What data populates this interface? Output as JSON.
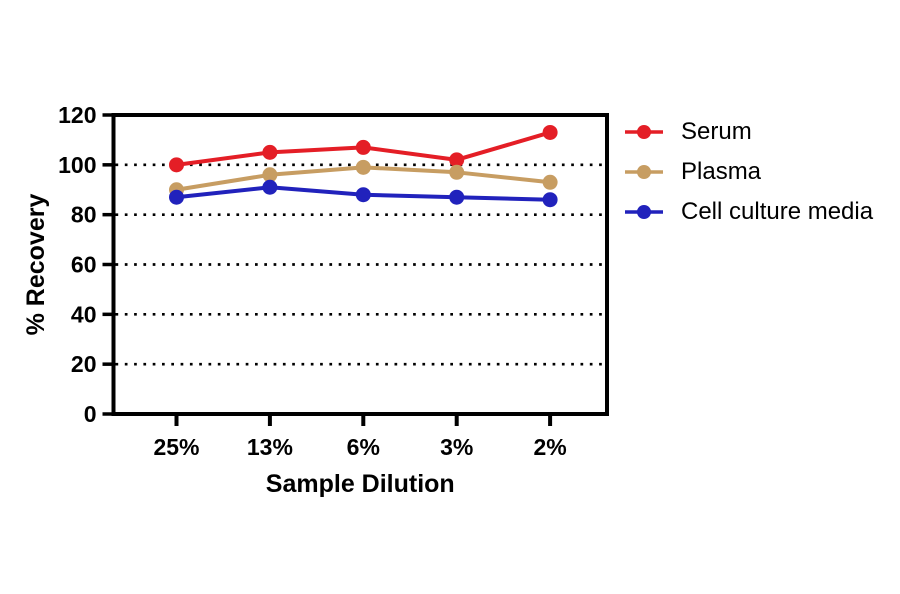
{
  "chart_data": {
    "type": "line",
    "title": "",
    "xlabel": "Sample Dilution",
    "ylabel": "% Recovery",
    "categories": [
      "25%",
      "13%",
      "6%",
      "3%",
      "2%"
    ],
    "series": [
      {
        "name": "Serum",
        "color": "#e41e26",
        "values": [
          100,
          105,
          107,
          102,
          113
        ]
      },
      {
        "name": "Plasma",
        "color": "#c79d62",
        "values": [
          90,
          96,
          99,
          97,
          93
        ]
      },
      {
        "name": "Cell culture media",
        "color": "#2122bc",
        "values": [
          87,
          91,
          88,
          87,
          86
        ]
      }
    ],
    "ylim": [
      0,
      120
    ],
    "yticks": [
      0,
      20,
      40,
      60,
      80,
      100,
      120
    ],
    "gridline_values": [
      20,
      40,
      60,
      80,
      100
    ],
    "grid_style": "dotted",
    "axis_color": "#000000",
    "background_color": "#ffffff",
    "legend_position": "right"
  }
}
